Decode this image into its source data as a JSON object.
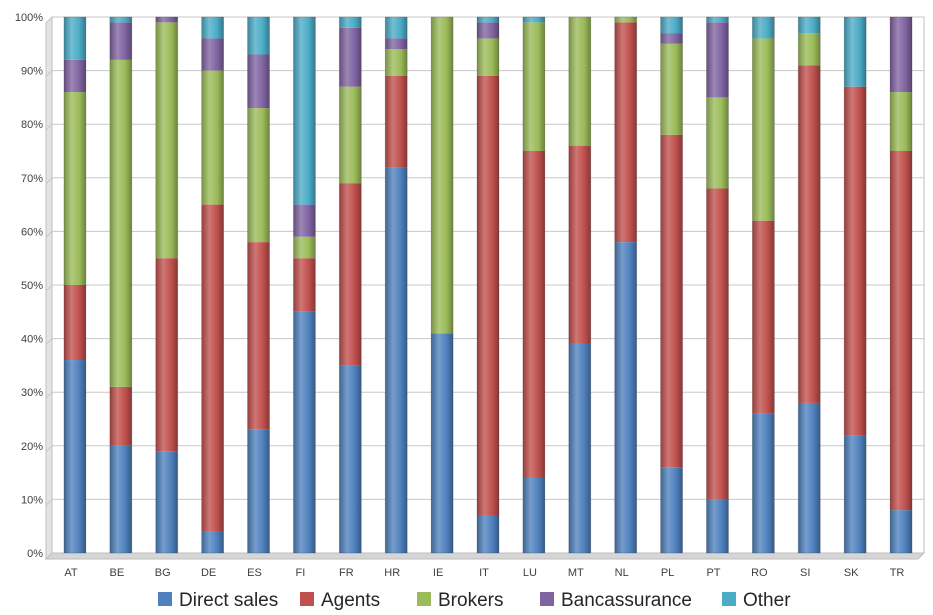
{
  "chart_data": {
    "type": "bar",
    "stacked": true,
    "normalized": true,
    "style": "3d-column",
    "categories": [
      "AT",
      "BE",
      "BG",
      "DE",
      "ES",
      "FI",
      "FR",
      "HR",
      "IE",
      "IT",
      "LU",
      "MT",
      "NL",
      "PL",
      "PT",
      "RO",
      "SI",
      "SK",
      "TR"
    ],
    "series": [
      {
        "name": "Direct sales",
        "color": "#4f81bd",
        "values": [
          36,
          20,
          19,
          4,
          23,
          45,
          35,
          72,
          41,
          7,
          14,
          39,
          58,
          16,
          10,
          26,
          28,
          22,
          8
        ]
      },
      {
        "name": "Agents",
        "color": "#c0504d",
        "values": [
          14,
          11,
          36,
          61,
          35,
          10,
          34,
          17,
          0,
          82,
          61,
          37,
          41,
          62,
          58,
          36,
          63,
          65,
          67
        ]
      },
      {
        "name": "Brokers",
        "color": "#9bbb59",
        "values": [
          36,
          61,
          44,
          25,
          25,
          4,
          18,
          5,
          59,
          7,
          24,
          24,
          1,
          17,
          17,
          34,
          6,
          0,
          11
        ]
      },
      {
        "name": "Bancassurance",
        "color": "#8064a2",
        "values": [
          6,
          7,
          1,
          6,
          10,
          6,
          11,
          2,
          0,
          3,
          0,
          0,
          0,
          2,
          14,
          0,
          0,
          0,
          14
        ]
      },
      {
        "name": "Other",
        "color": "#4bacc6",
        "values": [
          8,
          1,
          0,
          4,
          7,
          35,
          2,
          4,
          0,
          1,
          1,
          0,
          0,
          3,
          1,
          4,
          3,
          13,
          0
        ]
      }
    ],
    "ylim": [
      0,
      100
    ],
    "yticks": [
      0,
      10,
      20,
      30,
      40,
      50,
      60,
      70,
      80,
      90,
      100
    ],
    "ytick_labels": [
      "0%",
      "10%",
      "20%",
      "30%",
      "40%",
      "50%",
      "60%",
      "70%",
      "80%",
      "90%",
      "100%"
    ],
    "grid": true,
    "legend_position": "bottom"
  }
}
